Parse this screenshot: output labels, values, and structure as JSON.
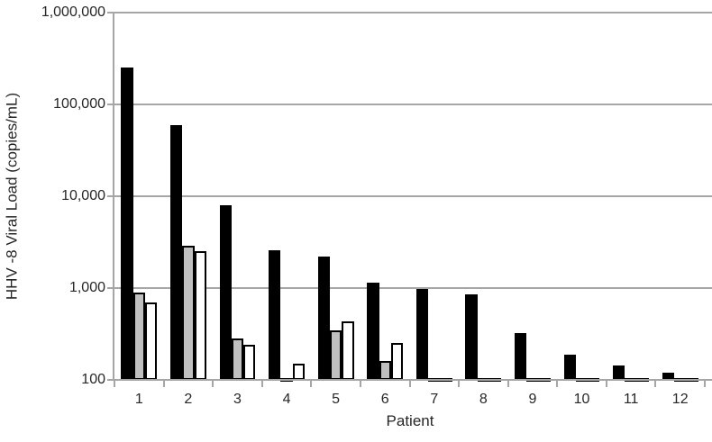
{
  "chart_data": {
    "type": "bar",
    "title": "",
    "xlabel": "Patient",
    "ylabel": "HHV -8 Viral Load (copies/mL)",
    "y_scale": "log10",
    "ylim": [
      100,
      1000000
    ],
    "y_ticks": [
      {
        "value": 100,
        "label": "100"
      },
      {
        "value": 1000,
        "label": "1,000"
      },
      {
        "value": 10000,
        "label": "10,000"
      },
      {
        "value": 100000,
        "label": "100,000"
      },
      {
        "value": 1000000,
        "label": "1,000,000"
      }
    ],
    "grid": true,
    "legend_position": "none",
    "categories": [
      "1",
      "2",
      "3",
      "4",
      "5",
      "6",
      "7",
      "8",
      "9",
      "10",
      "11",
      "12"
    ],
    "series": [
      {
        "name": "black-bars",
        "color": "#000000",
        "values": [
          250000,
          60000,
          8000,
          2600,
          2200,
          1150,
          970,
          850,
          320,
          190,
          145,
          120
        ]
      },
      {
        "name": "gray-bars",
        "color": "#c0c0c0",
        "values": [
          900,
          2900,
          280,
          105,
          350,
          160,
          105,
          105,
          105,
          105,
          105,
          105
        ]
      },
      {
        "name": "white-bars",
        "color": "#ffffff",
        "values": [
          700,
          2500,
          240,
          150,
          430,
          250,
          105,
          105,
          105,
          105,
          105,
          105
        ]
      }
    ]
  },
  "colors": {
    "background": "#ffffff",
    "axis": "#a6a6a6",
    "gridline": "#a6a6a6",
    "text": "#262626",
    "bar_outline": "#000000"
  }
}
